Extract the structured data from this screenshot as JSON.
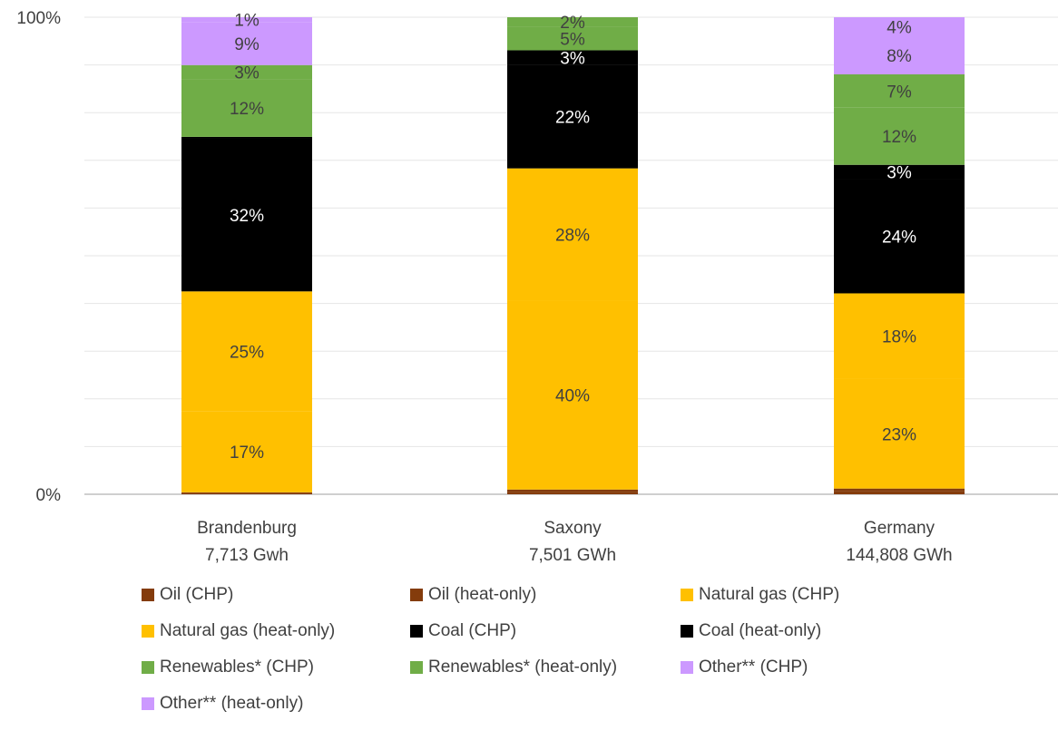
{
  "chart_data": {
    "type": "bar",
    "stacked": true,
    "percent_stacked": true,
    "title": "",
    "xlabel": "",
    "ylabel": "",
    "ylim": [
      0,
      100
    ],
    "y_ticks": [
      "0%",
      "100%"
    ],
    "grid": true,
    "legend_position": "bottom",
    "categories": [
      {
        "name": "Brandenburg",
        "sub": "7,713 Gwh"
      },
      {
        "name": "Saxony",
        "sub": "7,501 GWh"
      },
      {
        "name": "Germany",
        "sub": "144,808 GWh"
      }
    ],
    "series": [
      {
        "name": "Oil (CHP)",
        "color": "#843c0c",
        "values": [
          0.3,
          0.5,
          0.6
        ],
        "labels": [
          "",
          "",
          ""
        ],
        "label_color": "#404040"
      },
      {
        "name": "Oil (heat-only)",
        "color": "#843c0c",
        "values": [
          0.1,
          0.5,
          0.6
        ],
        "labels": [
          "",
          "",
          ""
        ],
        "label_color": "#404040"
      },
      {
        "name": "Natural gas (CHP)",
        "color": "#ffc000",
        "values": [
          17,
          40,
          23
        ],
        "labels": [
          "17%",
          "40%",
          "23%"
        ],
        "label_color": "#404040"
      },
      {
        "name": "Natural gas (heat-only)",
        "color": "#ffc000",
        "values": [
          25,
          28,
          18
        ],
        "labels": [
          "25%",
          "28%",
          "18%"
        ],
        "label_color": "#404040"
      },
      {
        "name": "Coal (CHP)",
        "color": "#000000",
        "values": [
          32,
          22,
          24
        ],
        "labels": [
          "32%",
          "22%",
          "24%"
        ],
        "label_color": "#ffffff"
      },
      {
        "name": "Coal (heat-only)",
        "color": "#000000",
        "values": [
          0.3,
          3,
          3
        ],
        "labels": [
          "",
          "3%",
          "3%"
        ],
        "label_color": "#ffffff"
      },
      {
        "name": "Renewables* (CHP)",
        "color": "#70ad47",
        "values": [
          12,
          5,
          12
        ],
        "labels": [
          "12%",
          "5%",
          "12%"
        ],
        "label_color": "#404040"
      },
      {
        "name": "Renewables* (heat-only)",
        "color": "#70ad47",
        "values": [
          3,
          2,
          7
        ],
        "labels": [
          "3%",
          "2%",
          "7%"
        ],
        "label_color": "#404040"
      },
      {
        "name": "Other** (CHP)",
        "color": "#cc99ff",
        "values": [
          9,
          0,
          8
        ],
        "labels": [
          "9%",
          "",
          "8%"
        ],
        "label_color": "#404040"
      },
      {
        "name": "Other** (heat-only)",
        "color": "#cc99ff",
        "values": [
          1,
          0,
          4
        ],
        "labels": [
          "1%",
          "",
          "4%"
        ],
        "label_color": "#404040"
      }
    ]
  }
}
